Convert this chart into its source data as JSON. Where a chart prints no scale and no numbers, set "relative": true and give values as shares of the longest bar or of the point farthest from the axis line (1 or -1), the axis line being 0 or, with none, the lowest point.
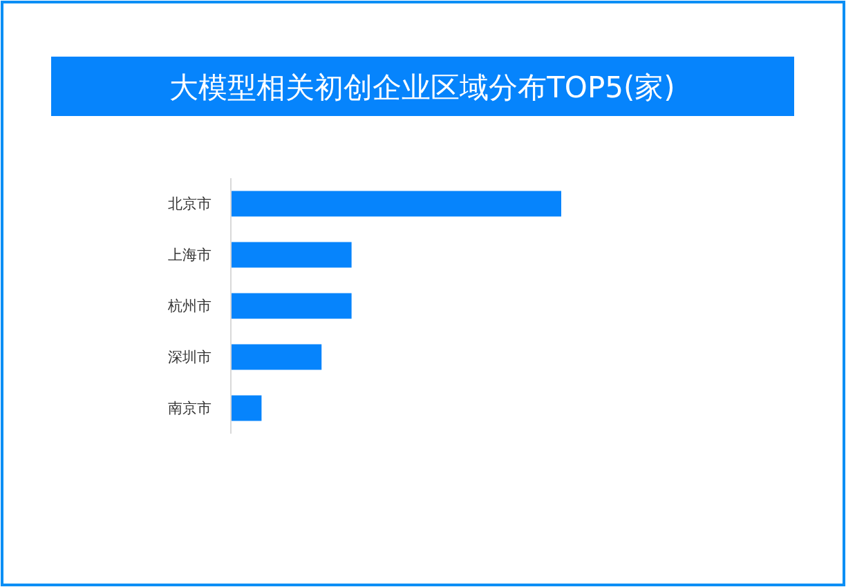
{
  "chart_data": {
    "type": "bar",
    "orientation": "horizontal",
    "relative": true,
    "title": "大模型相关初创企业区域分布TOP5(家)",
    "categories": [
      "北京市",
      "上海市",
      "杭州市",
      "深圳市",
      "南京市"
    ],
    "values": [
      1,
      0.364,
      0.364,
      0.273,
      0.091
    ],
    "color": "#0684fc",
    "grid": false
  }
}
